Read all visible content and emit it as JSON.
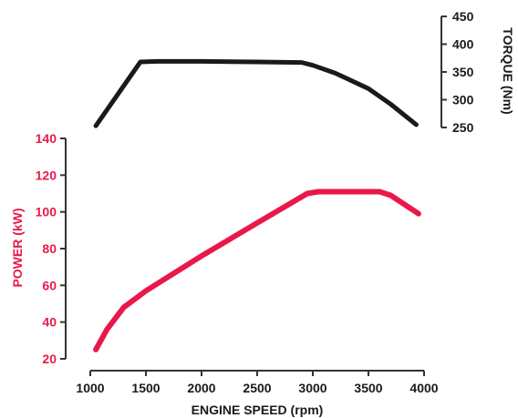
{
  "chart_data": {
    "type": "line",
    "xlabel": "ENGINE SPEED (rpm)",
    "x_ticks": [
      1000,
      1500,
      2000,
      2500,
      3000,
      3500,
      4000
    ],
    "xlim": [
      1000,
      4000
    ],
    "colors": {
      "power": "#e8194a",
      "torque": "#1a1a1a",
      "axis": "#333333"
    },
    "power": {
      "ylabel": "POWER (kW)",
      "ylim": [
        20,
        140
      ],
      "y_ticks": [
        20,
        40,
        60,
        80,
        100,
        120,
        140
      ],
      "x": [
        1050,
        1150,
        1300,
        1500,
        2000,
        2500,
        2950,
        3050,
        3300,
        3600,
        3700,
        3950
      ],
      "values": [
        25,
        36,
        48,
        57,
        76,
        94,
        110,
        111,
        111,
        111,
        109,
        99
      ]
    },
    "torque": {
      "ylabel": "TORQUE (Nm)",
      "ylim": [
        250,
        450
      ],
      "y_ticks": [
        250,
        300,
        350,
        400,
        450
      ],
      "x": [
        1050,
        1450,
        1600,
        2000,
        2500,
        2900,
        3000,
        3200,
        3500,
        3700,
        3930
      ],
      "values": [
        253,
        368,
        369,
        369,
        368,
        367,
        362,
        348,
        320,
        292,
        255
      ]
    }
  }
}
